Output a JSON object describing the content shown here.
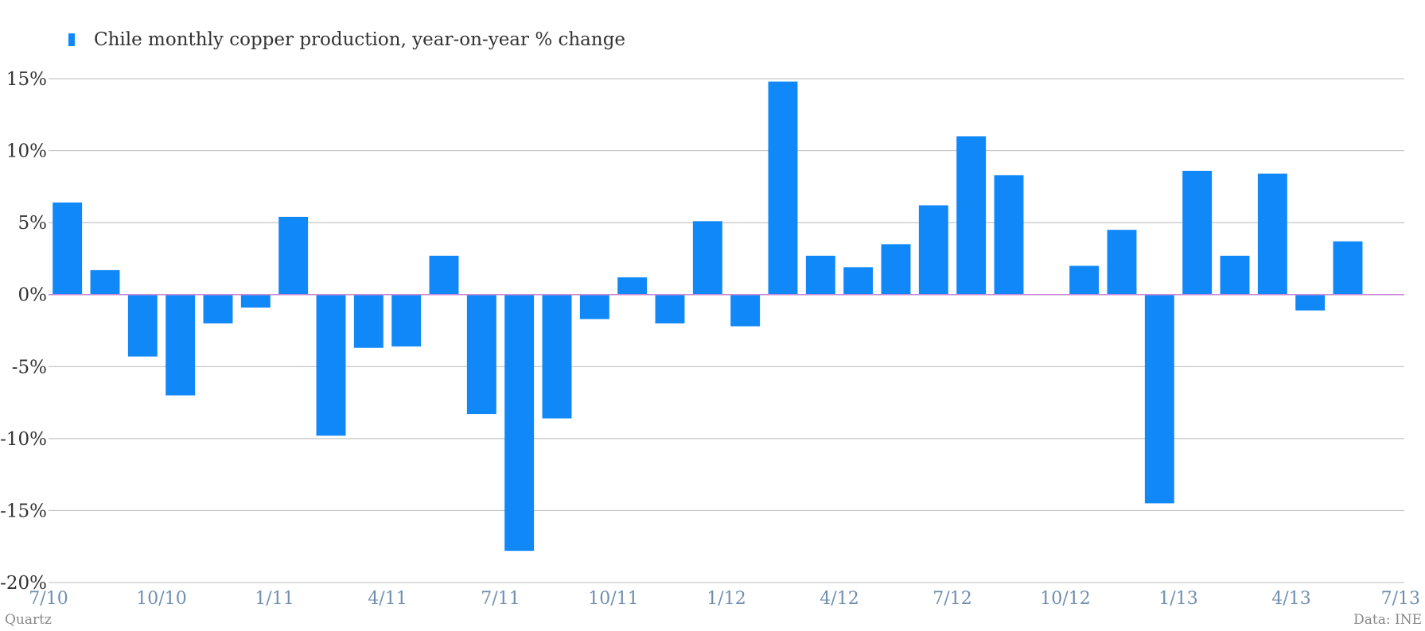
{
  "colors": {
    "bar": "#1088f8",
    "grid": "#b8b8b8",
    "zero_line": "#c98bd9",
    "axis_text": "#333333",
    "x_tick_text": "#6f8fb0",
    "footer_text": "#888888"
  },
  "footer": {
    "source_left": "Quartz",
    "source_right": "Data: INE"
  },
  "chart_data": {
    "type": "bar",
    "title": "",
    "xlabel": "",
    "ylabel": "",
    "ylim": [
      -20,
      15
    ],
    "y_ticks": [
      15,
      10,
      5,
      0,
      -5,
      -10,
      -15,
      -20
    ],
    "y_tick_labels": [
      "15%",
      "10%",
      "5%",
      "0%",
      "-5%",
      "-10%",
      "-15%",
      "-20%"
    ],
    "grid": true,
    "legend_position": "top-left",
    "x_tick_labels": [
      "7/10",
      "10/10",
      "1/11",
      "4/11",
      "7/11",
      "10/11",
      "1/12",
      "4/12",
      "7/12",
      "10/12",
      "1/13",
      "4/13",
      "7/13"
    ],
    "categories": [
      "7/10",
      "8/10",
      "9/10",
      "10/10",
      "11/10",
      "12/10",
      "1/11",
      "2/11",
      "3/11",
      "4/11",
      "5/11",
      "6/11",
      "7/11",
      "8/11",
      "9/11",
      "10/11",
      "11/11",
      "12/11",
      "1/12",
      "2/12",
      "3/12",
      "4/12",
      "5/12",
      "6/12",
      "7/12",
      "8/12",
      "9/12",
      "10/12",
      "11/12",
      "12/12",
      "1/13",
      "2/13",
      "3/13",
      "4/13",
      "5/13",
      "6/13"
    ],
    "series": [
      {
        "name": "Chile monthly copper production, year-on-year % change",
        "values": [
          6.4,
          1.7,
          -4.3,
          -7.0,
          -2.0,
          -0.9,
          5.4,
          -9.8,
          -3.7,
          -3.6,
          2.7,
          -8.3,
          -17.8,
          -8.6,
          -1.7,
          1.2,
          -2.0,
          5.1,
          -2.2,
          14.8,
          2.7,
          1.9,
          3.5,
          6.2,
          11.0,
          8.3,
          0.0,
          2.0,
          4.5,
          -14.5,
          8.6,
          2.7,
          8.4,
          -1.1,
          3.7,
          0.0
        ]
      }
    ]
  }
}
